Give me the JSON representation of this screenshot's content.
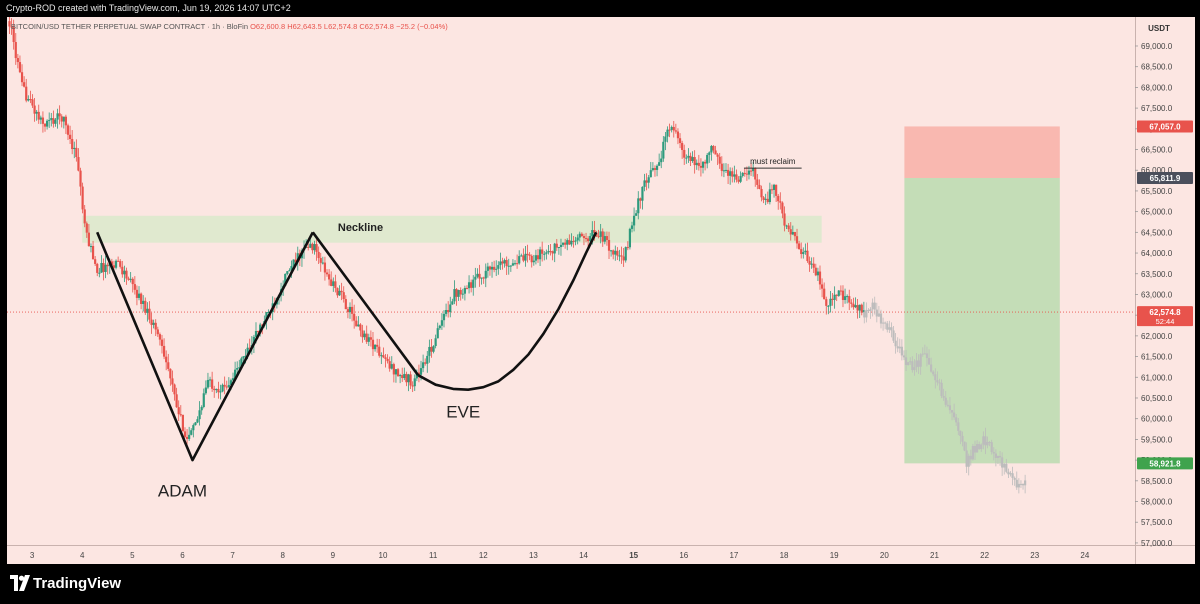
{
  "attribution": "Crypto-ROD created with TradingView.com, Jun 19, 2026 14:07 UTC+2",
  "brand": {
    "name": "TradingView",
    "logo_icon": "tradingview-logo-icon"
  },
  "legend": {
    "symbol": "BITCOIN/USD TETHER PERPETUAL SWAP CONTRACT · 1h · BloFin",
    "open": "O62,600.8",
    "high": "H62,643.5",
    "low": "L62,574.8",
    "close": "C62,574.8",
    "change": "−25.2 (−0.04%)"
  },
  "colors": {
    "background": "#fce6e2",
    "up": "#2e9a7d",
    "down": "#e8534c",
    "projection": "#bcbcbc",
    "neckline_zone": "#dde9cd",
    "target_zone": "#c4ddb7",
    "stop_zone": "#f9b8b0"
  },
  "chart_data": {
    "type": "candlestick",
    "currency": "USDT",
    "timeframe": "1h",
    "ylim": [
      56950,
      69700
    ],
    "xlim": [
      2.5,
      25.0
    ],
    "x_ticks": [
      "3",
      "4",
      "5",
      "6",
      "7",
      "8",
      "9",
      "10",
      "11",
      "12",
      "13",
      "14",
      "15",
      "16",
      "17",
      "18",
      "19",
      "20",
      "21",
      "22",
      "23",
      "24"
    ],
    "y_ticks": [
      "57,000.0",
      "57,500.0",
      "58,000.0",
      "58,500.0",
      "59,000.0",
      "59,500.0",
      "60,000.0",
      "60,500.0",
      "61,000.0",
      "61,500.0",
      "62,000.0",
      "62,500.0",
      "63,000.0",
      "63,500.0",
      "64,000.0",
      "64,500.0",
      "65,000.0",
      "65,500.0",
      "66,000.0",
      "66,500.0",
      "67,000.0",
      "67,500.0",
      "68,000.0",
      "68,500.0",
      "69,000.0"
    ],
    "price_path": [
      [
        2.55,
        69600
      ],
      [
        2.8,
        68000
      ],
      [
        3.2,
        67100
      ],
      [
        3.6,
        67300
      ],
      [
        3.9,
        66300
      ],
      [
        4.05,
        64600
      ],
      [
        4.3,
        63600
      ],
      [
        4.7,
        63800
      ],
      [
        5.0,
        63200
      ],
      [
        5.3,
        62600
      ],
      [
        5.6,
        61800
      ],
      [
        5.9,
        60200
      ],
      [
        6.1,
        59500
      ],
      [
        6.25,
        59800
      ],
      [
        6.5,
        60900
      ],
      [
        6.8,
        60700
      ],
      [
        7.1,
        61200
      ],
      [
        7.4,
        61900
      ],
      [
        7.7,
        62500
      ],
      [
        8.0,
        63300
      ],
      [
        8.35,
        64000
      ],
      [
        8.6,
        64200
      ],
      [
        8.9,
        63400
      ],
      [
        9.2,
        62900
      ],
      [
        9.5,
        62200
      ],
      [
        9.8,
        61800
      ],
      [
        10.1,
        61300
      ],
      [
        10.4,
        61000
      ],
      [
        10.6,
        60900
      ],
      [
        10.85,
        61400
      ],
      [
        11.1,
        62100
      ],
      [
        11.4,
        63000
      ],
      [
        11.8,
        63300
      ],
      [
        12.2,
        63700
      ],
      [
        12.6,
        63800
      ],
      [
        13.0,
        63900
      ],
      [
        13.4,
        64100
      ],
      [
        13.8,
        64300
      ],
      [
        14.3,
        64500
      ],
      [
        14.6,
        64000
      ],
      [
        14.8,
        63800
      ],
      [
        15.0,
        64900
      ],
      [
        15.2,
        65600
      ],
      [
        15.5,
        66200
      ],
      [
        15.75,
        67200
      ],
      [
        16.0,
        66300
      ],
      [
        16.35,
        66100
      ],
      [
        16.55,
        66500
      ],
      [
        16.8,
        66000
      ],
      [
        17.1,
        65800
      ],
      [
        17.4,
        66000
      ],
      [
        17.6,
        65200
      ],
      [
        17.8,
        65600
      ],
      [
        18.0,
        64800
      ],
      [
        18.3,
        64100
      ],
      [
        18.6,
        63700
      ],
      [
        18.85,
        62800
      ],
      [
        19.1,
        63000
      ],
      [
        19.4,
        62700
      ],
      [
        19.6,
        62574.8
      ]
    ],
    "projection_path": [
      [
        19.6,
        62574.8
      ],
      [
        19.75,
        62700
      ],
      [
        20.0,
        62300
      ],
      [
        20.2,
        61900
      ],
      [
        20.4,
        61400
      ],
      [
        20.6,
        61200
      ],
      [
        20.8,
        61600
      ],
      [
        21.0,
        61000
      ],
      [
        21.2,
        60500
      ],
      [
        21.4,
        60000
      ],
      [
        21.55,
        59400
      ],
      [
        21.65,
        58900
      ],
      [
        21.8,
        59300
      ],
      [
        22.0,
        59500
      ],
      [
        22.2,
        59200
      ],
      [
        22.4,
        58800
      ],
      [
        22.55,
        58500
      ],
      [
        22.7,
        58300
      ],
      [
        22.85,
        58700
      ]
    ],
    "neckline_zone": {
      "label": "Neckline",
      "x": [
        4.0,
        18.75
      ],
      "y": [
        64250,
        64900
      ]
    },
    "resistance_line": {
      "label": "must reclaim",
      "x": [
        17.2,
        18.35
      ],
      "y": 66050
    },
    "pattern": {
      "adam_label": "ADAM",
      "eve_label": "EVE",
      "adam_points": [
        [
          4.3,
          64500
        ],
        [
          6.2,
          59000
        ],
        [
          8.6,
          64500
        ]
      ],
      "descent_points": [
        [
          8.6,
          64500
        ],
        [
          10.7,
          61050
        ]
      ],
      "eve_curve": [
        [
          10.7,
          61050
        ],
        [
          11.05,
          60820
        ],
        [
          11.4,
          60720
        ],
        [
          11.7,
          60700
        ],
        [
          12.0,
          60760
        ],
        [
          12.3,
          60900
        ],
        [
          12.6,
          61180
        ],
        [
          12.9,
          61550
        ],
        [
          13.2,
          62050
        ],
        [
          13.5,
          62650
        ],
        [
          13.8,
          63350
        ],
        [
          14.05,
          64000
        ],
        [
          14.25,
          64500
        ]
      ]
    },
    "position": {
      "x": [
        20.4,
        23.5
      ],
      "stop": 67057.0,
      "entry": 65811.9,
      "target": 58921.8
    },
    "price_labels": {
      "stop": "67,057.0",
      "entry": "65,811.9",
      "current": "62,574.8",
      "countdown": "52:44",
      "target": "58,921.8"
    }
  }
}
